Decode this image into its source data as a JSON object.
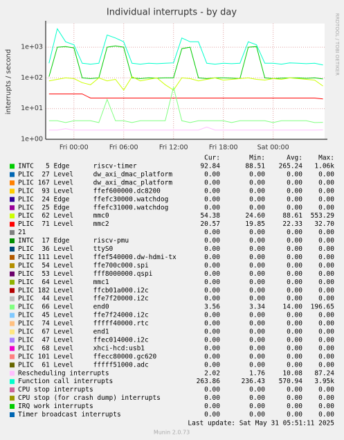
{
  "chart_data": {
    "type": "line",
    "title": "Individual interrupts - by day",
    "y_label": "interrupts / second",
    "side_text": "RRDTOOL / TOBI OETIKER",
    "last_update": "Last update: Sat May 31 05:51:11 2025",
    "footer": "Munin 2.0.73",
    "log_scale": true,
    "grid": true,
    "xlim": [
      -3.4,
      30.2
    ],
    "ylim": [
      1,
      5900
    ],
    "xticks": [
      {
        "value": 0,
        "label": "Fri 00:00"
      },
      {
        "value": 6,
        "label": "Fri 06:00"
      },
      {
        "value": 12,
        "label": "Fri 12:00"
      },
      {
        "value": 18,
        "label": "Fri 18:00"
      },
      {
        "value": 24,
        "label": "Sat 00:00"
      }
    ],
    "yticks": [
      {
        "value": 1,
        "label": "1e+00"
      },
      {
        "value": 10,
        "label": "1e+01"
      },
      {
        "value": 100,
        "label": "1e+02"
      },
      {
        "value": 1000,
        "label": "1e+03"
      }
    ],
    "legend_headers": [
      "Cur:",
      "Min:",
      "Avg:",
      "Max:"
    ],
    "x": [
      -3,
      -2,
      -1,
      0,
      1,
      2,
      3,
      4,
      5,
      6,
      7,
      8,
      9,
      10,
      11,
      12,
      13,
      14,
      15,
      16,
      17,
      18,
      19,
      20,
      21,
      22,
      23,
      24,
      25,
      26,
      27,
      28,
      29,
      30
    ],
    "series": [
      {
        "name": "INTC   5 Edge      riscv-timer",
        "color": "#00cc00",
        "cur": "92.84",
        "min": "88.51",
        "avg": "265.24",
        "max": "1.06k",
        "values": [
          110,
          1000,
          1050,
          950,
          100,
          95,
          100,
          1000,
          1100,
          1000,
          100,
          95,
          100,
          98,
          100,
          100,
          900,
          1000,
          100,
          95,
          100,
          100,
          98,
          95,
          1000,
          1050,
          100,
          95,
          98,
          100,
          100,
          97,
          100,
          92.84
        ]
      },
      {
        "name": "PLIC  27 Level     dw_axi_dmac_platform",
        "color": "#0066b3",
        "cur": "0.00",
        "min": "0.00",
        "avg": "0.00",
        "max": "0.00"
      },
      {
        "name": "PLIC 167 Level     dw_axi_dmac_platform",
        "color": "#ff8000",
        "cur": "0.00",
        "min": "0.00",
        "avg": "0.00",
        "max": "0.00"
      },
      {
        "name": "PLIC  93 Level     ffef600000.dc8200",
        "color": "#ffcc00",
        "cur": "0.00",
        "min": "0.00",
        "avg": "0.00",
        "max": "0.00"
      },
      {
        "name": "PLIC  24 Edge      ffefc30000.watchdog",
        "color": "#330099",
        "cur": "0.00",
        "min": "0.00",
        "avg": "0.00",
        "max": "0.00"
      },
      {
        "name": "PLIC  25 Edge      ffefc31000.watchdog",
        "color": "#990099",
        "cur": "0.00",
        "min": "0.00",
        "avg": "0.00",
        "max": "0.00"
      },
      {
        "name": "PLIC  62 Level     mmc0",
        "color": "#ccff00",
        "cur": "54.38",
        "min": "24.60",
        "avg": "88.61",
        "max": "553.29",
        "values": [
          80,
          90,
          100,
          95,
          70,
          60,
          100,
          80,
          90,
          40,
          110,
          80,
          90,
          100,
          60,
          40,
          100,
          95,
          80,
          90,
          100,
          85,
          90,
          95,
          100,
          90,
          85,
          95,
          90,
          100,
          95,
          90,
          85,
          54.38
        ]
      },
      {
        "name": "PLIC  71 Level     mmc2",
        "color": "#ff0000",
        "cur": "20.57",
        "min": "19.85",
        "avg": "22.33",
        "max": "32.70",
        "values": [
          30,
          30,
          30,
          30,
          30,
          22,
          22,
          22,
          22,
          22,
          22,
          22,
          22,
          22,
          22,
          22,
          22,
          22,
          22,
          22,
          22,
          22,
          22,
          22,
          22,
          22,
          22,
          22,
          22,
          22,
          22,
          22,
          22,
          20.57
        ]
      },
      {
        "name": "21",
        "color": "#808080",
        "cur": "0.00",
        "min": "0.00",
        "avg": "0.00",
        "max": "0.00"
      },
      {
        "name": "INTC  17 Edge      riscv-pmu",
        "color": "#008f00",
        "cur": "0.00",
        "min": "0.00",
        "avg": "0.00",
        "max": "0.00"
      },
      {
        "name": "PLIC  36 Level     ttyS0",
        "color": "#00487d",
        "cur": "0.00",
        "min": "0.00",
        "avg": "0.00",
        "max": "0.00"
      },
      {
        "name": "PLIC 111 Level     ffef540000.dw-hdmi-tx",
        "color": "#b35a00",
        "cur": "0.00",
        "min": "0.00",
        "avg": "0.00",
        "max": "0.00"
      },
      {
        "name": "PLIC  54 Level     ffe700c000.spi",
        "color": "#b38f00",
        "cur": "0.00",
        "min": "0.00",
        "avg": "0.00",
        "max": "0.00"
      },
      {
        "name": "PLIC  53 Level     fff8000000.qspi",
        "color": "#6b006b",
        "cur": "0.00",
        "min": "0.00",
        "avg": "0.00",
        "max": "0.00"
      },
      {
        "name": "PLIC  64 Level     mmc1",
        "color": "#8fb300",
        "cur": "0.00",
        "min": "0.00",
        "avg": "0.00",
        "max": "0.00"
      },
      {
        "name": "PLIC 182 Level     ffcb01a000.i2c",
        "color": "#b30000",
        "cur": "0.00",
        "min": "0.00",
        "avg": "0.00",
        "max": "0.00"
      },
      {
        "name": "PLIC  44 Level     ffe7f20000.i2c",
        "color": "#bebebe",
        "cur": "0.00",
        "min": "0.00",
        "avg": "0.00",
        "max": "0.00"
      },
      {
        "name": "PLIC  66 Level     end0",
        "color": "#80ff80",
        "cur": "3.56",
        "min": "3.34",
        "avg": "14.00",
        "max": "196.65",
        "values": [
          4,
          4,
          3.5,
          4,
          4,
          4,
          3.5,
          20,
          4,
          4,
          3.5,
          4,
          4,
          4,
          4,
          50,
          4,
          3.5,
          4,
          4,
          4,
          4,
          3.5,
          4,
          4,
          4,
          4,
          3.5,
          4,
          4,
          4,
          4,
          3.5,
          3.56
        ]
      },
      {
        "name": "PLIC  45 Level     ffe7f24000.i2c",
        "color": "#80c9ff",
        "cur": "0.00",
        "min": "0.00",
        "avg": "0.00",
        "max": "0.00"
      },
      {
        "name": "PLIC  74 Level     fffff40000.rtc",
        "color": "#ffc080",
        "cur": "0.00",
        "min": "0.00",
        "avg": "0.00",
        "max": "0.00"
      },
      {
        "name": "PLIC  67 Level     end1",
        "color": "#ffe680",
        "cur": "0.00",
        "min": "0.00",
        "avg": "0.00",
        "max": "0.00"
      },
      {
        "name": "PLIC  47 Level     ffec014000.i2c",
        "color": "#aa80ff",
        "cur": "0.00",
        "min": "0.00",
        "avg": "0.00",
        "max": "0.00"
      },
      {
        "name": "PLIC  68 Level     xhci-hcd:usb1",
        "color": "#ee00cc",
        "cur": "0.00",
        "min": "0.00",
        "avg": "0.00",
        "max": "0.00"
      },
      {
        "name": "PLIC 101 Level     ffecc80000.gc620",
        "color": "#ff8080",
        "cur": "0.00",
        "min": "0.00",
        "avg": "0.00",
        "max": "0.00"
      },
      {
        "name": "PLIC  61 Level     fffff51000.adc",
        "color": "#666600",
        "cur": "0.00",
        "min": "0.00",
        "avg": "0.00",
        "max": "0.00"
      },
      {
        "name": "Rescheduling interrupts",
        "color": "#ffbfff",
        "cur": "2.02",
        "min": "1.76",
        "avg": "10.08",
        "max": "87.24",
        "values": [
          2,
          2,
          2.2,
          2,
          2,
          2,
          2,
          2,
          2,
          2,
          2,
          2,
          2,
          2,
          2,
          2,
          2,
          2,
          2,
          2.5,
          2,
          2,
          2,
          2,
          2,
          2,
          2,
          2,
          2,
          2,
          2,
          2,
          2,
          2.02
        ]
      },
      {
        "name": "Function call interrupts",
        "color": "#00ffcc",
        "cur": "263.86",
        "min": "236.43",
        "avg": "570.94",
        "max": "3.95k",
        "values": [
          300,
          4000,
          1500,
          1200,
          300,
          280,
          300,
          2500,
          2000,
          1500,
          300,
          280,
          300,
          290,
          300,
          310,
          2000,
          1500,
          1500,
          300,
          280,
          300,
          290,
          300,
          1500,
          1200,
          300,
          300,
          280,
          310,
          300,
          290,
          300,
          263.86
        ]
      },
      {
        "name": "CPU stop interrupts",
        "color": "#cc6699",
        "cur": "0.00",
        "min": "0.00",
        "avg": "0.00",
        "max": "0.00"
      },
      {
        "name": "CPU stop (for crash dump) interrupts",
        "color": "#999900",
        "cur": "0.00",
        "min": "0.00",
        "avg": "0.00",
        "max": "0.00"
      },
      {
        "name": "IRQ work interrupts",
        "color": "#00cc00",
        "cur": "0.00",
        "min": "0.00",
        "avg": "0.00",
        "max": "0.00"
      },
      {
        "name": "Timer broadcast interrupts",
        "color": "#0066b3",
        "cur": "0.00",
        "min": "0.00",
        "avg": "0.00",
        "max": "0.00"
      }
    ]
  }
}
